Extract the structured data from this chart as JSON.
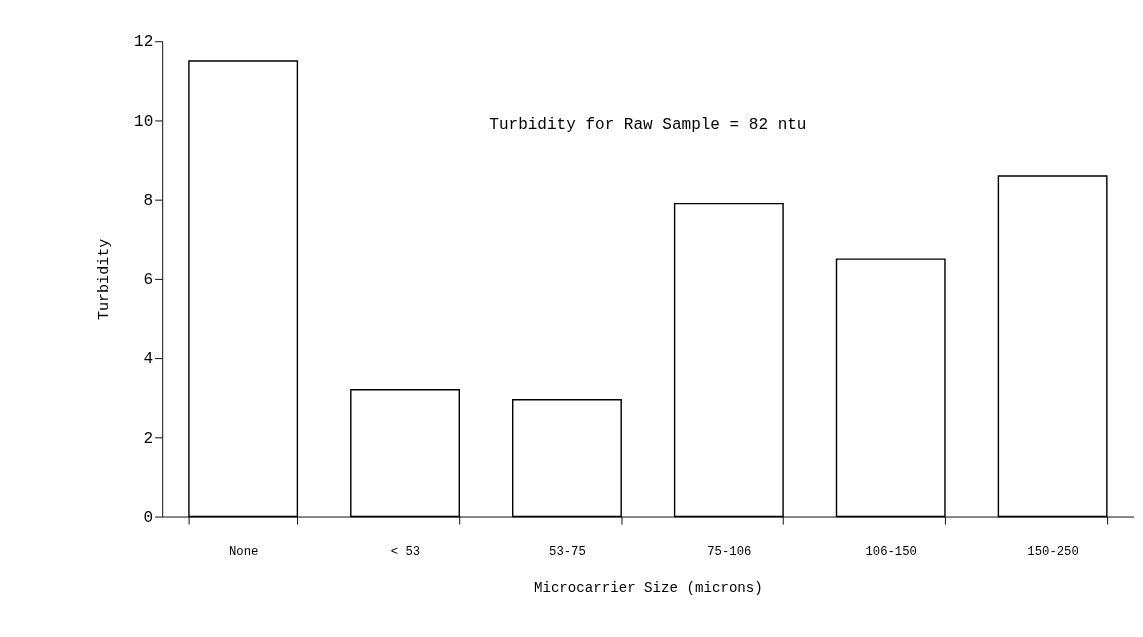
{
  "chart_data": {
    "type": "bar",
    "categories": [
      "None",
      "< 53",
      "53-75",
      "75-106",
      "106-150",
      "150-250"
    ],
    "values": [
      11.5,
      3.2,
      2.95,
      7.9,
      6.5,
      8.6
    ],
    "color": "#ffffff",
    "xlabel": "Microcarrier Size (microns)",
    "ylabel": "Turbidity",
    "ylim": [
      0,
      12
    ],
    "yticks": [
      0,
      2,
      4,
      6,
      8,
      10,
      12
    ],
    "annotations": [
      "Turbidity for Raw Sample = 82 ntu"
    ]
  }
}
